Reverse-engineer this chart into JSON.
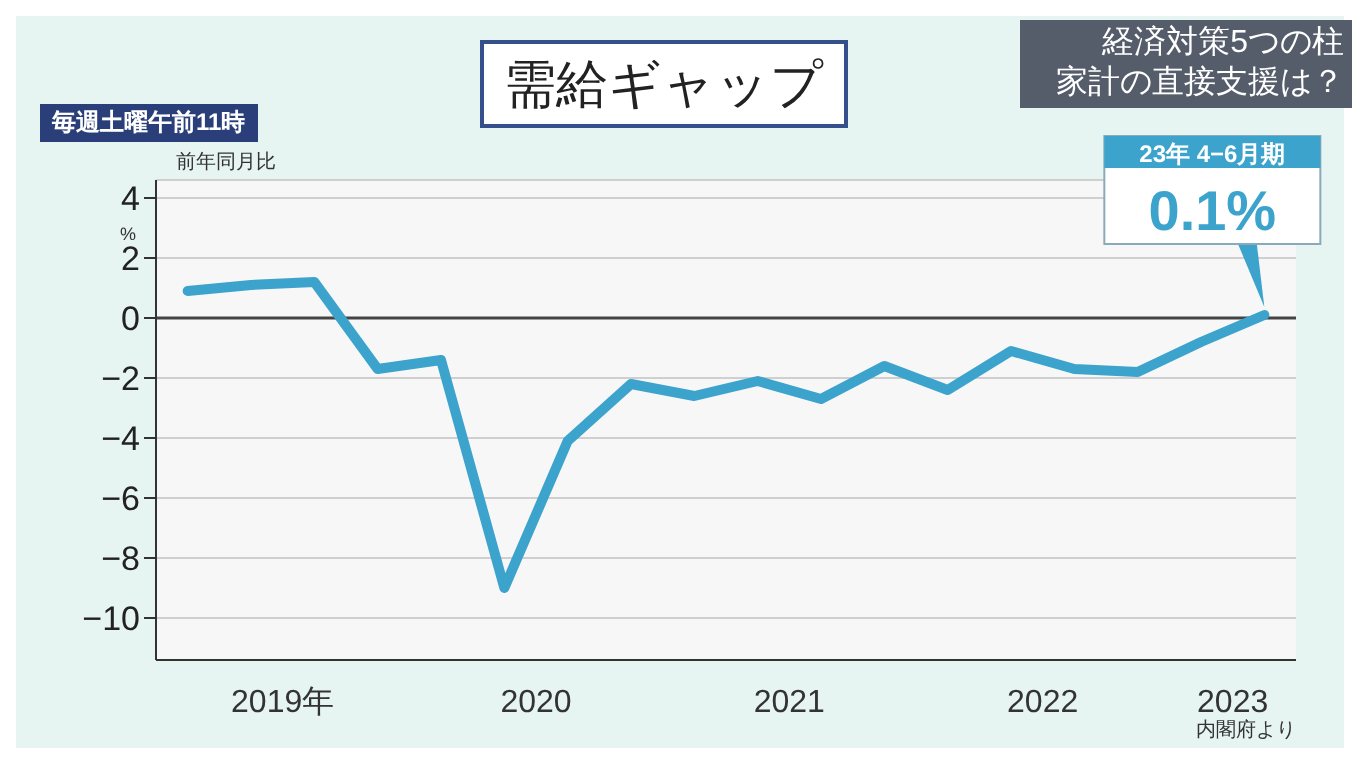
{
  "chart_data": {
    "type": "line",
    "title": "需給ギャップ",
    "ylabel": "前年同月比",
    "annotations": [
      "%",
      "経済対策5つの柱",
      "家計の直接支援は？",
      "毎週土曜午前11時",
      "内閣府より",
      {
        "text": "23年 4−6月期\n0.1%",
        "x": 2023.375,
        "y": 0.1
      }
    ],
    "x": [
      2019.125,
      2019.375,
      2019.625,
      2019.875,
      2020.125,
      2020.375,
      2020.625,
      2020.875,
      2021.125,
      2021.375,
      2021.625,
      2021.875,
      2022.125,
      2022.375,
      2022.625,
      2022.875,
      2023.125,
      2023.375
    ],
    "series": [
      {
        "color": "#3ba3cc",
        "values": [
          0.9,
          1.1,
          1.2,
          -1.7,
          -1.4,
          -9.0,
          -4.1,
          -2.2,
          -2.6,
          -2.1,
          -2.7,
          -1.6,
          -2.4,
          -1.1,
          -1.7,
          -1.8,
          -0.8,
          0.1
        ]
      }
    ],
    "xlim": [
      2019,
      2023.5
    ],
    "xticks": [
      {
        "value": 2019.5,
        "label": "2019年"
      },
      {
        "value": 2020.5,
        "label": "2020"
      },
      {
        "value": 2021.5,
        "label": "2021"
      },
      {
        "value": 2022.5,
        "label": "2022"
      },
      {
        "value": 2023.25,
        "label": "2023"
      }
    ],
    "ylim": [
      -11.4,
      4.6
    ],
    "yticks": [
      -10,
      -8,
      -6,
      -4,
      -2,
      0,
      2,
      4
    ],
    "grid": "y",
    "marker": "none",
    "line_style": "solid",
    "ref_lines": [
      {
        "axis": "y",
        "value": 0,
        "color": "#444444"
      }
    ]
  }
}
